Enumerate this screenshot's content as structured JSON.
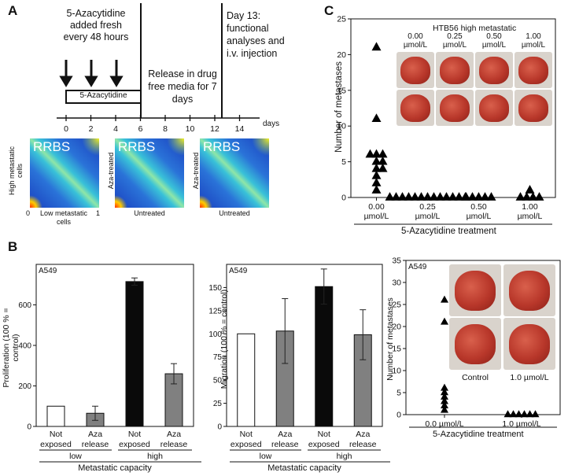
{
  "panel_labels": {
    "a": "A",
    "b": "B",
    "c": "C"
  },
  "panel_a": {
    "aza_note": "5-Azacytidine added fresh every 48 hours",
    "bar_label": "5-Azacytidine",
    "release": "Release in drug free media for 7 days",
    "day13": "Day 13: functional analyses and i.v. injection",
    "timeline_ticks": [
      "0",
      "2",
      "4",
      "6",
      "8",
      "10",
      "12",
      "14"
    ],
    "days_unit": "days",
    "heatmaps": [
      {
        "title": "RRBS",
        "ylabel": "High metastatic cells",
        "xlabel": "Low metastatic cells"
      },
      {
        "title": "RRBS",
        "ylabel": "Aza-treated",
        "xlabel": "Untreated"
      },
      {
        "title": "RRBS",
        "ylabel": "Aza-treated",
        "xlabel": "Untreated"
      }
    ],
    "axis_zero": "0",
    "axis_one": "1"
  },
  "panel_b": {
    "cell_line": "A549",
    "group_low": "low",
    "group_high": "high",
    "group_axis": "Metastatic capacity",
    "third_xlabel": "5-Azacytidine treatment",
    "photo_labels": [
      "Control",
      "1.0 µmol/L"
    ]
  },
  "panel_c": {
    "header": "HTB56 high metastatic",
    "photo_doses": [
      "0.00 µmol/L",
      "0.25 µmol/L",
      "0.50 µmol/L",
      "1.00 µmol/L"
    ]
  },
  "colors": {
    "white_bar": "#ffffff",
    "grey_bar": "#808080",
    "black_bar": "#0a0a0a",
    "marker": "#000000"
  },
  "chart_data": [
    {
      "type": "bar",
      "id": "b-proliferation",
      "ylabel": "Proliferation (100 % = control)",
      "categories": [
        "Not exposed",
        "Aza release",
        "Not exposed",
        "Aza release"
      ],
      "values": [
        100,
        65,
        715,
        260
      ],
      "errors": [
        0,
        35,
        18,
        50
      ],
      "bar_colors": [
        "white",
        "grey",
        "black",
        "grey"
      ],
      "yticks": [
        0,
        200,
        400,
        600
      ],
      "ylim": [
        0,
        800
      ]
    },
    {
      "type": "bar",
      "id": "b-migration",
      "ylabel": "Migration (100 % = control)",
      "categories": [
        "Not exposed",
        "Aza release",
        "Not exposed",
        "Aza release"
      ],
      "values": [
        100,
        103,
        151,
        99
      ],
      "errors": [
        0,
        35,
        19,
        27
      ],
      "bar_colors": [
        "white",
        "grey",
        "black",
        "grey"
      ],
      "yticks": [
        0,
        25,
        50,
        75,
        100,
        125,
        150
      ],
      "ylim": [
        0,
        175
      ]
    },
    {
      "type": "scatter",
      "id": "b-metastases",
      "ylabel": "Number of metastases",
      "xlabel": "5-Azacytidine treatment",
      "categories": [
        "0.0 µmol/L",
        "1.0 µmol/L"
      ],
      "points": [
        [
          26,
          21,
          6,
          5,
          4,
          3,
          2,
          1
        ],
        [
          0,
          0,
          0,
          0,
          0,
          0
        ]
      ],
      "yticks": [
        0,
        5,
        10,
        15,
        20,
        25,
        30,
        35
      ],
      "ylim": [
        0,
        35
      ]
    },
    {
      "type": "scatter",
      "id": "c-metastases",
      "ylabel": "Number of metastases",
      "xlabel": "5-Azacytidine treatment",
      "categories": [
        "0.00 µmol/L",
        "0.25 µmol/L",
        "0.50 µmol/L",
        "1.00 µmol/L"
      ],
      "points": [
        [
          21,
          11,
          6,
          6,
          6,
          5,
          5,
          4,
          4,
          3,
          2,
          1
        ],
        [
          0,
          0,
          0,
          0,
          0,
          0,
          0,
          0,
          0,
          0,
          0,
          0,
          0
        ],
        [
          0,
          0,
          0,
          0,
          0
        ],
        [
          1,
          0,
          0,
          0,
          0
        ]
      ],
      "yticks": [
        0,
        5,
        10,
        15,
        20,
        25
      ],
      "ylim": [
        0,
        25
      ]
    }
  ]
}
